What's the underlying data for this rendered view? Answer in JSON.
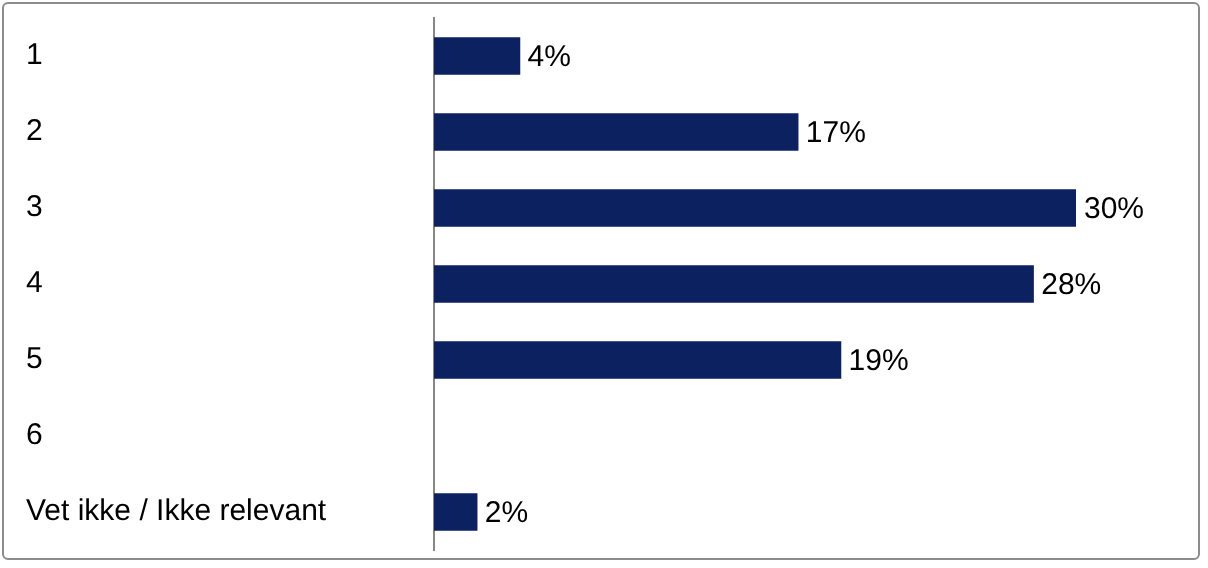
{
  "chart_data": {
    "type": "bar",
    "orientation": "horizontal",
    "categories": [
      "1",
      "2",
      "3",
      "4",
      "5",
      "6",
      "Vet ikke / Ikke relevant"
    ],
    "values": [
      4,
      17,
      30,
      28,
      19,
      null,
      2
    ],
    "value_labels": [
      "4%",
      "17%",
      "30%",
      "28%",
      "19%",
      null,
      "2%"
    ],
    "color": "#0c2160",
    "tick_labels": "y",
    "grid": false,
    "legend": false
  }
}
